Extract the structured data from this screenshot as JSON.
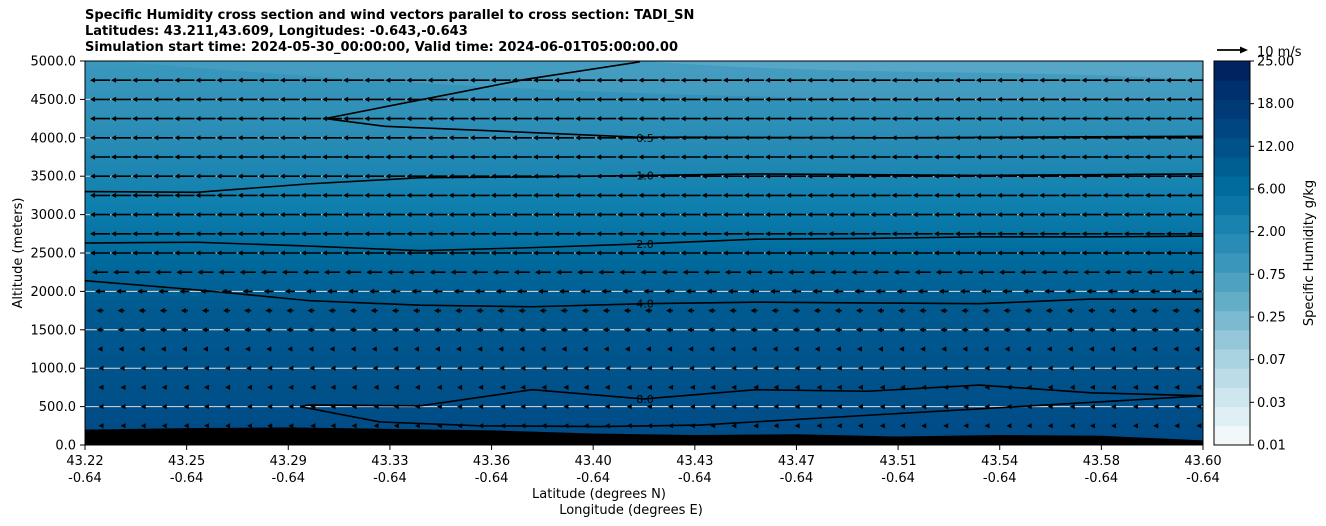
{
  "chart_data": {
    "type": "heatmap",
    "title_lines": [
      "Specific Humidity cross section and wind vectors parallel to cross section: TADI_SN",
      "Latitudes: 43.211,43.609, Longitudes: -0.643,-0.643",
      "Simulation start time: 2024-05-30_00:00:00, Valid time: 2024-06-01T05:00:00.00"
    ],
    "xlabel_lines": [
      "Latitude (degrees N)",
      "Longitude (degrees E)"
    ],
    "ylabel": "Altitude (meters)",
    "x_tick_labels": [
      [
        "43.22",
        "-0.64"
      ],
      [
        "43.25",
        "-0.64"
      ],
      [
        "43.29",
        "-0.64"
      ],
      [
        "43.33",
        "-0.64"
      ],
      [
        "43.36",
        "-0.64"
      ],
      [
        "43.40",
        "-0.64"
      ],
      [
        "43.43",
        "-0.64"
      ],
      [
        "43.47",
        "-0.64"
      ],
      [
        "43.51",
        "-0.64"
      ],
      [
        "43.54",
        "-0.64"
      ],
      [
        "43.58",
        "-0.64"
      ],
      [
        "43.60",
        "-0.64"
      ]
    ],
    "y_ticks": [
      0,
      500,
      1000,
      1500,
      2000,
      2500,
      3000,
      3500,
      4000,
      4500,
      5000
    ],
    "y_tick_labels": [
      "0.0",
      "500.0",
      "1000.0",
      "1500.0",
      "2000.0",
      "2500.0",
      "3000.0",
      "3500.0",
      "4000.0",
      "4500.0",
      "5000.0"
    ],
    "ylim": [
      0,
      5000
    ],
    "grid": "horizontal lines",
    "colorbar": {
      "label": "Specific Humidity g/kg",
      "tick_labels": [
        "0.01",
        "0.03",
        "0.07",
        "0.25",
        "0.75",
        "2.00",
        "6.00",
        "12.00",
        "18.00",
        "25.00"
      ],
      "levels": 20,
      "colors": [
        "#f2f8fa",
        "#e0eff4",
        "#cfe6ee",
        "#bcdde8",
        "#a9d3e1",
        "#93c7d9",
        "#7bbad0",
        "#64adc7",
        "#4ea1c0",
        "#3a96bb",
        "#2a8cb5",
        "#1a82ae",
        "#0b76a5",
        "#006c9e",
        "#005f92",
        "#005288",
        "#004681",
        "#003b78",
        "#00306d",
        "#002460"
      ]
    },
    "contours": [
      {
        "label": "0.5",
        "altitude": [
          4990,
          4650,
          4240,
          4070,
          4000,
          4000,
          4020,
          4000,
          3990,
          3990,
          4020
        ]
      },
      {
        "label": "1.0",
        "altitude": [
          3300,
          3290,
          3400,
          3480,
          3490,
          3510,
          3530,
          3520,
          3510,
          3520,
          3530
        ]
      },
      {
        "label": "2.0",
        "altitude": [
          2630,
          2640,
          2590,
          2530,
          2570,
          2620,
          2680,
          2690,
          2710,
          2710,
          2720
        ]
      },
      {
        "label": "4.0",
        "altitude": [
          2140,
          2020,
          1880,
          1820,
          1800,
          1840,
          1860,
          1850,
          1840,
          1900,
          1900
        ]
      },
      {
        "label": "8.0",
        "altitude": [
          null,
          null,
          520,
          510,
          720,
          600,
          720,
          700,
          780,
          680,
          640
        ]
      }
    ],
    "wind_reference": "10 m/s",
    "wind_direction": "toward lower latitude (south)"
  }
}
